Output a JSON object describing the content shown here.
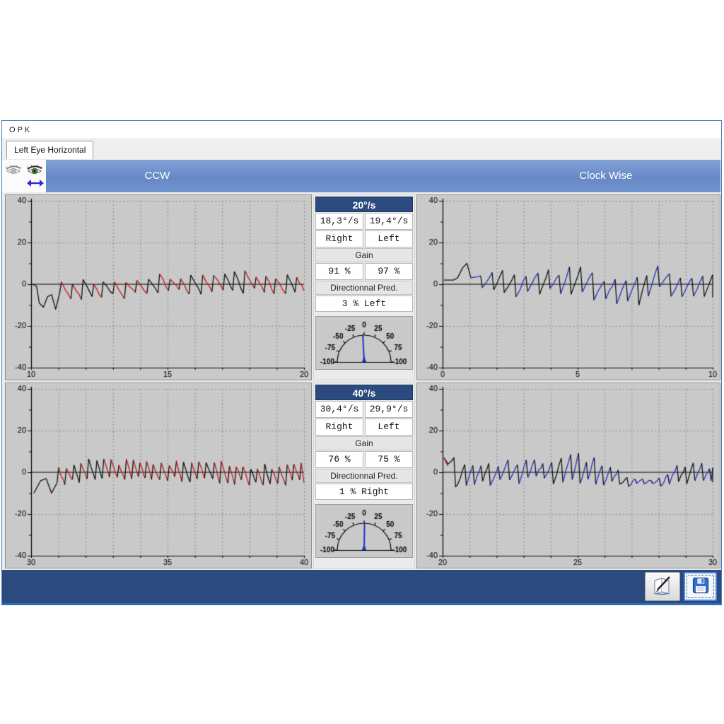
{
  "window": {
    "title": "O P K"
  },
  "tabs": [
    {
      "label": "Left Eye Horizontal",
      "active": true
    }
  ],
  "header": {
    "ccw_label": "CCW",
    "cw_label": "Clock Wise"
  },
  "icons": {
    "eye_disabled": "eye-icon",
    "eye_active": "eye-icon-green",
    "direction": "horizontal-double-arrow-icon",
    "edit": "pencil-notebook-icon",
    "save": "floppy-disk-icon"
  },
  "colors": {
    "band_blue": "#6f90cc",
    "navy": "#2b4a7d",
    "trace_red": "#cc1414",
    "trace_blue": "#2230c0",
    "trace_black": "#111111",
    "panel_gray": "#c9c9c9"
  },
  "stats": [
    {
      "title": "20°/s",
      "velocity_right": "18,3°/s",
      "velocity_left": "19,4°/s",
      "dir_right": "Right",
      "dir_left": "Left",
      "gain_label": "Gain",
      "gain_right": "91 %",
      "gain_left": "97 %",
      "pred_label": "Directionnal Pred.",
      "pred_value": "3 % Left",
      "gauge": {
        "tick_values": [
          -100,
          -75,
          -50,
          -25,
          0,
          25,
          50,
          75,
          100
        ],
        "needle_percent": -3
      }
    },
    {
      "title": "40°/s",
      "velocity_right": "30,4°/s",
      "velocity_left": "29,9°/s",
      "dir_right": "Right",
      "dir_left": "Left",
      "gain_label": "Gain",
      "gain_right": "76 %",
      "gain_left": "75 %",
      "pred_label": "Directionnal Pred.",
      "pred_value": "1 % Right",
      "gauge": {
        "tick_values": [
          -100,
          -75,
          -50,
          -25,
          0,
          25,
          50,
          75,
          100
        ],
        "needle_percent": 1
      }
    }
  ],
  "chart_data": [
    {
      "id": "ccw-20",
      "type": "line",
      "title": "CCW 20°/s nystagmus trace",
      "xlim": [
        10,
        20
      ],
      "x_ticks": [
        10,
        15,
        20
      ],
      "x_grid_step": 1,
      "ylim": [
        -40,
        40
      ],
      "y_ticks": [
        40,
        20,
        0,
        -20,
        -40
      ],
      "trace": {
        "kind": "nystagmus",
        "slow_phase": "down",
        "color": "#cc1414",
        "fast_color": "#111111",
        "period": 0.33,
        "seed": 42,
        "black_prob": 0.3,
        "tooth_above": [
          2.0,
          5.5
        ],
        "tooth_below": [
          2.5,
          6.0
        ],
        "amp_scale": [
          [
            10,
            1
          ],
          [
            20,
            1
          ]
        ],
        "drift": [
          [
            10,
            0
          ],
          [
            11,
            -3
          ],
          [
            13,
            -1.5
          ],
          [
            15,
            0
          ],
          [
            17,
            1.5
          ],
          [
            19,
            0.5
          ],
          [
            20,
            0.3
          ]
        ],
        "intro": {
          "color": "#111111",
          "points": [
            [
              10.05,
              0
            ],
            [
              10.2,
              -1
            ],
            [
              10.3,
              -9
            ],
            [
              10.45,
              -11
            ],
            [
              10.6,
              -6
            ],
            [
              10.75,
              -5
            ],
            [
              10.9,
              -12
            ],
            [
              11.05,
              -4
            ]
          ]
        },
        "accents": []
      }
    },
    {
      "id": "cw-20",
      "type": "line",
      "title": "Clock Wise 20°/s nystagmus trace",
      "xlim": [
        0,
        10
      ],
      "x_ticks": [
        0,
        5,
        10
      ],
      "x_grid_step": 1,
      "ylim": [
        -40,
        40
      ],
      "y_ticks": [
        40,
        20,
        0,
        -20,
        -40
      ],
      "trace": {
        "kind": "nystagmus",
        "slow_phase": "up",
        "color": "#2230c0",
        "fast_color": "#111111",
        "period": 0.34,
        "seed": 7,
        "black_prob": 0.3,
        "tooth_above": [
          3.0,
          7.0
        ],
        "tooth_below": [
          2.5,
          6.5
        ],
        "amp_scale": [
          [
            0,
            1
          ],
          [
            4,
            1
          ],
          [
            4.4,
            1.2
          ],
          [
            6,
            1
          ],
          [
            7.2,
            1.3
          ],
          [
            7.8,
            1.2
          ],
          [
            8.2,
            0.9
          ],
          [
            10,
            0.9
          ]
        ],
        "drift": [
          [
            0,
            2
          ],
          [
            1,
            1
          ],
          [
            3,
            0
          ],
          [
            4.5,
            1.5
          ],
          [
            5.5,
            -2
          ],
          [
            6.5,
            -4
          ],
          [
            7.2,
            -2
          ],
          [
            7.6,
            2
          ],
          [
            8.3,
            0
          ],
          [
            9.3,
            -1
          ],
          [
            10,
            -1
          ]
        ],
        "intro": {
          "color": "#111111",
          "points": [
            [
              0.05,
              2
            ],
            [
              0.4,
              2
            ],
            [
              0.55,
              3
            ],
            [
              0.75,
              8
            ],
            [
              0.9,
              10
            ],
            [
              1.05,
              3
            ]
          ]
        },
        "accents": []
      }
    },
    {
      "id": "ccw-40",
      "type": "line",
      "title": "CCW 40°/s nystagmus trace",
      "xlim": [
        30,
        40
      ],
      "x_ticks": [
        30,
        35,
        40
      ],
      "x_grid_step": 1,
      "ylim": [
        -40,
        40
      ],
      "y_ticks": [
        40,
        20,
        0,
        -20,
        -40
      ],
      "trace": {
        "kind": "nystagmus",
        "slow_phase": "down",
        "color": "#cc1414",
        "fast_color": "#111111",
        "period": 0.21,
        "seed": 99,
        "black_prob": 0.3,
        "tooth_above": [
          2.5,
          6.0
        ],
        "tooth_below": [
          2.5,
          5.5
        ],
        "amp_scale": [
          [
            30,
            1
          ],
          [
            40,
            1
          ]
        ],
        "drift": [
          [
            30,
            -2
          ],
          [
            31,
            -1
          ],
          [
            32,
            0.5
          ],
          [
            33,
            1
          ],
          [
            35,
            0.5
          ],
          [
            36.5,
            0
          ],
          [
            38,
            -1.5
          ],
          [
            39.3,
            -1
          ],
          [
            40,
            0.5
          ]
        ],
        "intro": {
          "color": "#111111",
          "points": [
            [
              30.1,
              -10
            ],
            [
              30.35,
              -4
            ],
            [
              30.55,
              -3
            ],
            [
              30.75,
              -10
            ],
            [
              30.95,
              -5
            ]
          ]
        },
        "accents": []
      }
    },
    {
      "id": "cw-40",
      "type": "line",
      "title": "Clock Wise 40°/s nystagmus trace",
      "xlim": [
        20,
        30
      ],
      "x_ticks": [
        20,
        25,
        30
      ],
      "x_grid_step": 1,
      "ylim": [
        -40,
        40
      ],
      "y_ticks": [
        40,
        20,
        0,
        -20,
        -40
      ],
      "trace": {
        "kind": "nystagmus",
        "slow_phase": "up",
        "color": "#2230c0",
        "fast_color": "#111111",
        "period": 0.26,
        "seed": 5,
        "black_prob": 0.3,
        "tooth_above": [
          2.0,
          6.0
        ],
        "tooth_below": [
          2.5,
          6.0
        ],
        "amp_scale": [
          [
            20,
            1
          ],
          [
            23,
            1.1
          ],
          [
            25.2,
            1.4
          ],
          [
            26.2,
            0.8
          ],
          [
            26.8,
            0.25
          ],
          [
            27.7,
            0.3
          ],
          [
            28.2,
            1
          ],
          [
            30,
            0.9
          ]
        ],
        "drift": [
          [
            20,
            0
          ],
          [
            21,
            -2
          ],
          [
            22,
            0
          ],
          [
            23,
            1
          ],
          [
            24,
            0.5
          ],
          [
            25,
            1.5
          ],
          [
            25.8,
            -1
          ],
          [
            26.6,
            -4.5
          ],
          [
            27.8,
            -4.5
          ],
          [
            28.4,
            -1
          ],
          [
            29.3,
            0.5
          ],
          [
            30,
            -1.5
          ]
        ],
        "intro": {
          "color": "#111111",
          "points": [
            [
              20.05,
              7
            ],
            [
              20.2,
              4
            ],
            [
              20.3,
              5
            ],
            [
              20.42,
              7
            ],
            [
              20.48,
              -7
            ],
            [
              20.55,
              -6
            ]
          ]
        },
        "accents": [
          {
            "color": "#cc1414",
            "points": [
              [
                20.08,
                6
              ],
              [
                20.2,
                3
              ]
            ]
          }
        ]
      }
    }
  ]
}
